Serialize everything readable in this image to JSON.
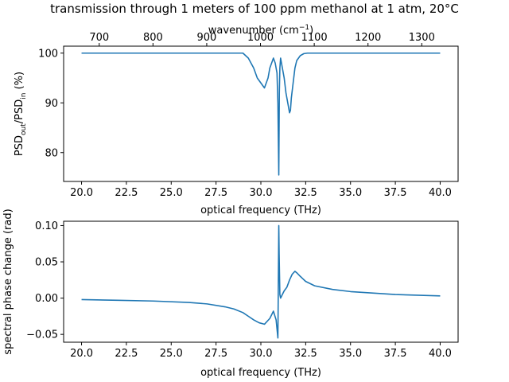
{
  "figure": {
    "title": "transmission through 1 meters of 100 ppm methanol at 1 atm, 20°C"
  },
  "chart_data": [
    {
      "type": "line",
      "id": "transmission",
      "title": "",
      "xlabel": "optical frequency (THz)",
      "ylabel_parts": {
        "base1": "PSD",
        "sub1": "out",
        "sep": "/PSD",
        "sub2": "in",
        "unit": " (%)"
      },
      "xlim": [
        19.0,
        41.0
      ],
      "ylim": [
        74.2,
        101.4
      ],
      "xticks": [
        20.0,
        22.5,
        25.0,
        27.5,
        30.0,
        32.5,
        35.0,
        37.5,
        40.0
      ],
      "xtick_labels": [
        "20.0",
        "22.5",
        "25.0",
        "27.5",
        "30.0",
        "32.5",
        "35.0",
        "37.5",
        "40.0"
      ],
      "yticks": [
        80,
        90,
        100
      ],
      "ytick_labels": [
        "80",
        "90",
        "100"
      ],
      "secondary_xaxis": {
        "position": "top",
        "label_base": "wavenumber (cm",
        "label_sup": "−1",
        "label_end": ")",
        "ticks": [
          700,
          800,
          900,
          1000,
          1100,
          1200,
          1300
        ],
        "tick_labels": [
          "700",
          "800",
          "900",
          "1000",
          "1100",
          "1200",
          "1300"
        ],
        "conversion_thz_per_cm1": 0.0299792458
      },
      "grid": false,
      "series": [
        {
          "x": [
            20.0,
            22.0,
            24.0,
            26.0,
            28.0,
            29.0,
            29.3,
            29.6,
            29.8,
            30.0,
            30.2,
            30.4,
            30.5,
            30.6,
            30.7,
            30.8,
            30.9,
            30.95,
            31.0,
            31.03,
            31.06,
            31.1,
            31.2,
            31.3,
            31.4,
            31.5,
            31.6,
            31.65,
            31.7,
            31.8,
            31.9,
            32.0,
            32.2,
            32.4,
            32.6,
            33.0,
            35.0,
            37.5,
            40.0
          ],
          "y": [
            100,
            100,
            100,
            100,
            100,
            100,
            99.0,
            97.0,
            95.0,
            94.0,
            93.0,
            95.0,
            97.0,
            98.0,
            99.0,
            98.0,
            96.0,
            90.0,
            75.5,
            92.0,
            97.0,
            99.0,
            97.0,
            95.0,
            92.0,
            90.0,
            88.0,
            88.5,
            91.0,
            94.0,
            97.0,
            98.5,
            99.5,
            99.9,
            100,
            100,
            100,
            100,
            100
          ]
        }
      ]
    },
    {
      "type": "line",
      "id": "phase",
      "title": "",
      "xlabel": "optical frequency (THz)",
      "ylabel": "spectral phase change (rad)",
      "xlim": [
        19.0,
        41.0
      ],
      "ylim": [
        -0.0608,
        0.106
      ],
      "xticks": [
        20.0,
        22.5,
        25.0,
        27.5,
        30.0,
        32.5,
        35.0,
        37.5,
        40.0
      ],
      "xtick_labels": [
        "20.0",
        "22.5",
        "25.0",
        "27.5",
        "30.0",
        "32.5",
        "35.0",
        "37.5",
        "40.0"
      ],
      "yticks": [
        -0.05,
        0.0,
        0.05,
        0.1
      ],
      "ytick_labels": [
        "−0.05",
        "0.00",
        "0.05",
        "0.10"
      ],
      "grid": false,
      "series": [
        {
          "x": [
            20.0,
            22.0,
            24.0,
            26.0,
            27.0,
            28.0,
            28.5,
            29.0,
            29.3,
            29.6,
            29.9,
            30.2,
            30.5,
            30.7,
            30.85,
            30.95,
            31.0,
            31.02,
            31.06,
            31.1,
            31.2,
            31.3,
            31.45,
            31.6,
            31.75,
            31.9,
            32.0,
            32.2,
            32.5,
            33.0,
            34.0,
            35.0,
            37.5,
            40.0
          ],
          "y": [
            -0.002,
            -0.003,
            -0.004,
            -0.006,
            -0.008,
            -0.012,
            -0.015,
            -0.02,
            -0.025,
            -0.03,
            -0.034,
            -0.036,
            -0.028,
            -0.018,
            -0.03,
            -0.055,
            0.1,
            0.06,
            0.005,
            0.0,
            0.005,
            0.01,
            0.015,
            0.025,
            0.033,
            0.037,
            0.035,
            0.03,
            0.023,
            0.017,
            0.012,
            0.009,
            0.005,
            0.003
          ]
        }
      ]
    }
  ]
}
